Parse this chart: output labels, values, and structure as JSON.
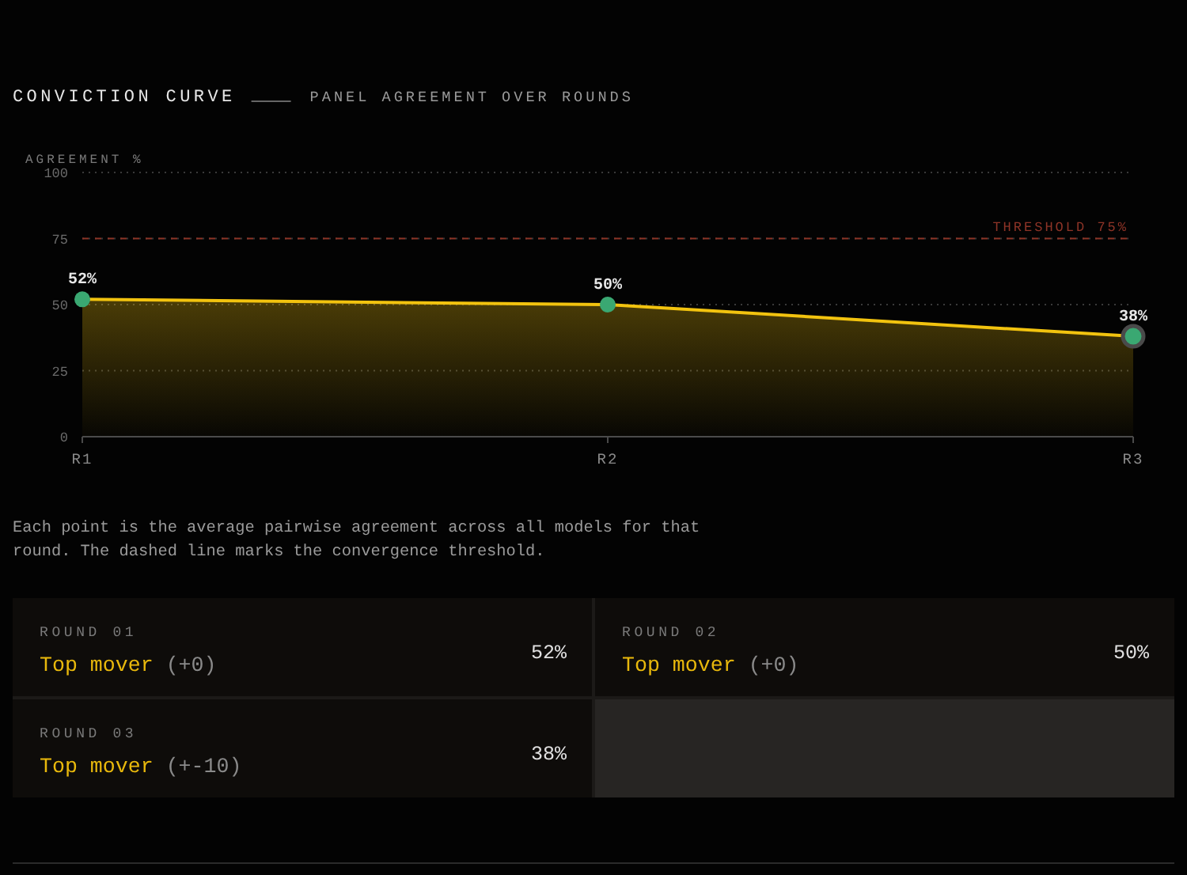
{
  "chart_data": [
    {
      "type": "area",
      "title": "CONVICTION CURVE",
      "subtitle": "PANEL AGREEMENT OVER ROUNDS",
      "ylabel": "AGREEMENT %",
      "categories": [
        "R1",
        "R2",
        "R3"
      ],
      "values": [
        52,
        50,
        38
      ],
      "value_labels": [
        "52%",
        "50%",
        "38%"
      ],
      "color": "#f2c30f",
      "ylim": [
        0,
        100
      ],
      "yticks": [
        0,
        25,
        50,
        75,
        100
      ],
      "grid": "y",
      "marker": "circle",
      "ref_lines": [
        {
          "axis": "y",
          "value": 75,
          "label": "THRESHOLD 75%",
          "color": "#8e3427",
          "line_style": "dashed"
        }
      ],
      "annotations": [
        "Each point is the average pairwise agreement across all models for that round. The dashed line marks the convergence threshold."
      ]
    },
    {
      "type": "other",
      "annotations": [
        "ROUND 01",
        "Top mover",
        "(+0)",
        "52%",
        "ROUND 02",
        "Top mover",
        "(+0)",
        "50%",
        "ROUND 03",
        "Top mover",
        "(+-10)",
        "38%"
      ]
    }
  ]
}
